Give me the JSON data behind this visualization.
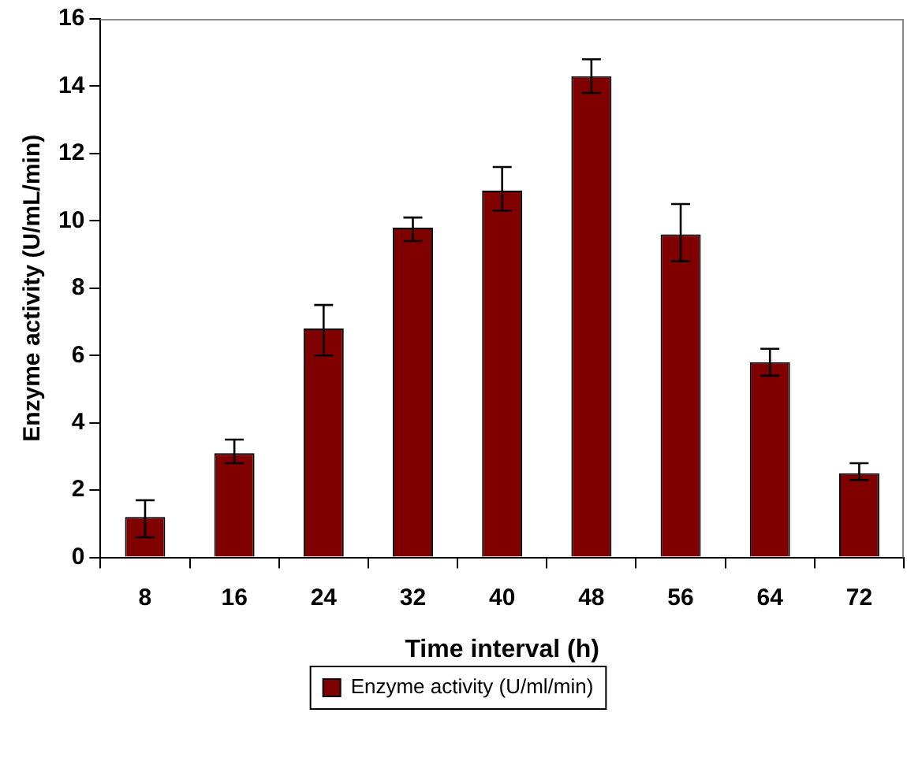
{
  "chart_data": {
    "type": "bar",
    "xlabel": "Time interval (h)",
    "ylabel": "Enzyme activity (U/mL/min)",
    "categories": [
      "8",
      "16",
      "24",
      "32",
      "40",
      "48",
      "56",
      "64",
      "72"
    ],
    "series": [
      {
        "name": "Enzyme activity (U/ml/min)",
        "color": "#800000",
        "values": [
          1.2,
          3.1,
          6.8,
          9.8,
          10.9,
          14.3,
          9.6,
          5.8,
          2.5
        ],
        "errors": [
          [
            0.6,
            1.7
          ],
          [
            2.8,
            3.5
          ],
          [
            6.0,
            7.5
          ],
          [
            9.4,
            10.1
          ],
          [
            10.3,
            11.6
          ],
          [
            13.8,
            14.8
          ],
          [
            8.8,
            10.5
          ],
          [
            5.4,
            6.2
          ],
          [
            2.3,
            2.8
          ]
        ]
      }
    ],
    "ylim": [
      0,
      16
    ],
    "yticks": [
      0,
      2,
      4,
      6,
      8,
      10,
      12,
      14,
      16
    ],
    "grid": false,
    "legend": "bottom"
  }
}
